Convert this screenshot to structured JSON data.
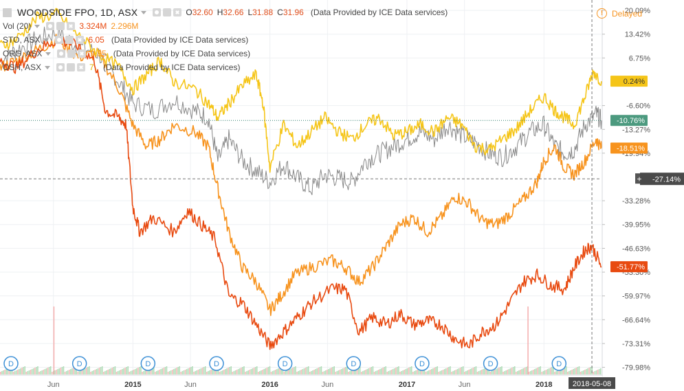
{
  "header": {
    "title": "WOODSIDE FPO, 1D, ASX",
    "ohlc": [
      {
        "k": "O",
        "v": "32.60"
      },
      {
        "k": "H",
        "v": "32.66"
      },
      {
        "k": "L",
        "v": "31.88"
      },
      {
        "k": "C",
        "v": "31.96"
      }
    ],
    "provided": "(Data Provided by ICE Data services)",
    "delayed": "Delayed"
  },
  "volume_legend": {
    "label": "Vol (20)",
    "v1": "3.324M",
    "v2": "2.296M"
  },
  "comparisons": [
    {
      "label": "STO, ASX",
      "value": "6.05",
      "color": "#e84a10",
      "provided": "(Data Provided by ICE Data services)"
    },
    {
      "label": "ORG, ASX",
      "value": "9.85",
      "color": "#f7931e",
      "provided": "(Data Provided by ICE Data services)"
    },
    {
      "label": "OSH, ASX",
      "value": "7.",
      "color": "#f5c518",
      "provided": "(Data Provided by ICE Data services)"
    }
  ],
  "colors": {
    "WPL": "#888888",
    "STO": "#e84a10",
    "ORG": "#f7931e",
    "OSH": "#f5c518",
    "volume_up": "#9fd5a6",
    "volume_down": "#f4a6a6"
  },
  "chart_data": {
    "type": "line",
    "y_axis_percent": true,
    "ylim": [
      -82,
      23
    ],
    "y_ticks": [
      "20.09%",
      "13.42%",
      "6.75%",
      "-6.60%",
      "-13.27%",
      "-19.94%",
      "-33.28%",
      "-39.95%",
      "-46.63%",
      "-53.30%",
      "-59.97%",
      "-66.64%",
      "-73.31%",
      "-79.98%"
    ],
    "y_tick_values": [
      20.09,
      13.42,
      6.75,
      -6.6,
      -13.27,
      -19.94,
      -33.28,
      -39.95,
      -46.63,
      -53.3,
      -59.97,
      -66.64,
      -73.31,
      -79.98
    ],
    "x_ticks": [
      {
        "label": "Jun",
        "t": 2014.42
      },
      {
        "label": "2015",
        "t": 2015.0
      },
      {
        "label": "Jun",
        "t": 2015.42
      },
      {
        "label": "2016",
        "t": 2016.0
      },
      {
        "label": "Jun",
        "t": 2016.42
      },
      {
        "label": "2017",
        "t": 2017.0
      },
      {
        "label": "Jun",
        "t": 2017.42
      },
      {
        "label": "2018",
        "t": 2018.0
      }
    ],
    "x_range": [
      2014.03,
      2018.42
    ],
    "crosshair": {
      "x_label": "2018-05-08",
      "t": 2018.35,
      "y_label": "-27.14%",
      "y": -27.14
    },
    "last_value_labels": [
      {
        "series": "OSH",
        "label": "0.24%",
        "y": 0.24
      },
      {
        "series": "WPL",
        "label": "-10.76%",
        "y": -10.76
      },
      {
        "series": "ORG",
        "label": "-18.51%",
        "y": -18.51
      },
      {
        "series": "STO",
        "label": "-51.77%",
        "y": -51.77
      }
    ],
    "series": [
      {
        "key": "WPL",
        "name": "WOODSIDE FPO",
        "points": [
          [
            2014.03,
            6
          ],
          [
            2014.15,
            9
          ],
          [
            2014.3,
            12
          ],
          [
            2014.45,
            14
          ],
          [
            2014.6,
            10
          ],
          [
            2014.75,
            8
          ],
          [
            2014.9,
            0
          ],
          [
            2015.0,
            -6
          ],
          [
            2015.15,
            -8
          ],
          [
            2015.3,
            -5
          ],
          [
            2015.45,
            -8
          ],
          [
            2015.55,
            -10
          ],
          [
            2015.62,
            -22
          ],
          [
            2015.7,
            -16
          ],
          [
            2015.8,
            -22
          ],
          [
            2015.9,
            -25
          ],
          [
            2016.0,
            -28
          ],
          [
            2016.1,
            -23
          ],
          [
            2016.2,
            -27
          ],
          [
            2016.3,
            -30
          ],
          [
            2016.4,
            -26
          ],
          [
            2016.5,
            -27
          ],
          [
            2016.6,
            -28
          ],
          [
            2016.7,
            -22
          ],
          [
            2016.8,
            -20
          ],
          [
            2016.9,
            -18
          ],
          [
            2017.0,
            -16
          ],
          [
            2017.1,
            -14
          ],
          [
            2017.2,
            -16
          ],
          [
            2017.3,
            -12
          ],
          [
            2017.4,
            -15
          ],
          [
            2017.5,
            -17
          ],
          [
            2017.6,
            -20
          ],
          [
            2017.7,
            -21
          ],
          [
            2017.8,
            -18
          ],
          [
            2017.9,
            -14
          ],
          [
            2018.0,
            -12
          ],
          [
            2018.08,
            -18
          ],
          [
            2018.15,
            -20
          ],
          [
            2018.22,
            -19
          ],
          [
            2018.3,
            -12
          ],
          [
            2018.38,
            -9
          ],
          [
            2018.42,
            -10.76
          ]
        ]
      },
      {
        "key": "STO",
        "name": "STO, ASX",
        "points": [
          [
            2014.03,
            6
          ],
          [
            2014.15,
            4
          ],
          [
            2014.3,
            9
          ],
          [
            2014.45,
            12
          ],
          [
            2014.6,
            10
          ],
          [
            2014.72,
            6
          ],
          [
            2014.8,
            -8
          ],
          [
            2014.9,
            -10
          ],
          [
            2014.95,
            -12
          ],
          [
            2015.0,
            -35
          ],
          [
            2015.05,
            -42
          ],
          [
            2015.15,
            -38
          ],
          [
            2015.3,
            -42
          ],
          [
            2015.4,
            -36
          ],
          [
            2015.5,
            -40
          ],
          [
            2015.6,
            -44
          ],
          [
            2015.7,
            -60
          ],
          [
            2015.8,
            -62
          ],
          [
            2015.9,
            -68
          ],
          [
            2016.0,
            -74
          ],
          [
            2016.1,
            -70
          ],
          [
            2016.2,
            -66
          ],
          [
            2016.3,
            -62
          ],
          [
            2016.45,
            -58
          ],
          [
            2016.55,
            -58
          ],
          [
            2016.65,
            -70
          ],
          [
            2016.75,
            -66
          ],
          [
            2016.85,
            -68
          ],
          [
            2016.95,
            -65
          ],
          [
            2017.05,
            -68
          ],
          [
            2017.15,
            -67
          ],
          [
            2017.25,
            -68
          ],
          [
            2017.35,
            -72
          ],
          [
            2017.45,
            -74
          ],
          [
            2017.55,
            -70
          ],
          [
            2017.65,
            -68
          ],
          [
            2017.75,
            -62
          ],
          [
            2017.85,
            -56
          ],
          [
            2017.95,
            -54
          ],
          [
            2018.05,
            -57
          ],
          [
            2018.15,
            -58
          ],
          [
            2018.22,
            -52
          ],
          [
            2018.3,
            -47
          ],
          [
            2018.35,
            -46
          ],
          [
            2018.42,
            -51.77
          ]
        ]
      },
      {
        "key": "ORG",
        "name": "ORG, ASX",
        "points": [
          [
            2014.03,
            4
          ],
          [
            2014.15,
            6
          ],
          [
            2014.3,
            9
          ],
          [
            2014.45,
            12
          ],
          [
            2014.6,
            7
          ],
          [
            2014.75,
            8
          ],
          [
            2014.9,
            -2
          ],
          [
            2015.0,
            -12
          ],
          [
            2015.1,
            -18
          ],
          [
            2015.2,
            -16
          ],
          [
            2015.3,
            -12
          ],
          [
            2015.45,
            -14
          ],
          [
            2015.55,
            -18
          ],
          [
            2015.62,
            -30
          ],
          [
            2015.7,
            -42
          ],
          [
            2015.8,
            -52
          ],
          [
            2015.9,
            -56
          ],
          [
            2016.0,
            -64
          ],
          [
            2016.08,
            -60
          ],
          [
            2016.18,
            -54
          ],
          [
            2016.3,
            -52
          ],
          [
            2016.45,
            -50
          ],
          [
            2016.55,
            -52
          ],
          [
            2016.65,
            -56
          ],
          [
            2016.75,
            -52
          ],
          [
            2016.85,
            -46
          ],
          [
            2016.95,
            -40
          ],
          [
            2017.05,
            -38
          ],
          [
            2017.15,
            -42
          ],
          [
            2017.25,
            -38
          ],
          [
            2017.35,
            -32
          ],
          [
            2017.45,
            -34
          ],
          [
            2017.55,
            -39
          ],
          [
            2017.65,
            -40
          ],
          [
            2017.75,
            -37
          ],
          [
            2017.85,
            -33
          ],
          [
            2017.95,
            -28
          ],
          [
            2018.0,
            -22
          ],
          [
            2018.08,
            -18
          ],
          [
            2018.15,
            -24
          ],
          [
            2018.22,
            -26
          ],
          [
            2018.3,
            -22
          ],
          [
            2018.38,
            -16
          ],
          [
            2018.42,
            -18.51
          ]
        ]
      },
      {
        "key": "OSH",
        "name": "OSH, ASX",
        "points": [
          [
            2014.03,
            10
          ],
          [
            2014.15,
            12
          ],
          [
            2014.3,
            18
          ],
          [
            2014.45,
            19
          ],
          [
            2014.6,
            13
          ],
          [
            2014.75,
            8
          ],
          [
            2014.9,
            4
          ],
          [
            2015.0,
            -2
          ],
          [
            2015.1,
            2
          ],
          [
            2015.2,
            6
          ],
          [
            2015.3,
            0
          ],
          [
            2015.45,
            -2
          ],
          [
            2015.55,
            -6
          ],
          [
            2015.62,
            -10
          ],
          [
            2015.7,
            -6
          ],
          [
            2015.8,
            -1
          ],
          [
            2015.9,
            2
          ],
          [
            2015.95,
            -6
          ],
          [
            2016.0,
            -24
          ],
          [
            2016.1,
            -12
          ],
          [
            2016.2,
            -18
          ],
          [
            2016.3,
            -14
          ],
          [
            2016.4,
            -10
          ],
          [
            2016.5,
            -14
          ],
          [
            2016.6,
            -16
          ],
          [
            2016.7,
            -12
          ],
          [
            2016.8,
            -10
          ],
          [
            2016.9,
            -15
          ],
          [
            2017.0,
            -14
          ],
          [
            2017.1,
            -12
          ],
          [
            2017.2,
            -14
          ],
          [
            2017.3,
            -10
          ],
          [
            2017.4,
            -12
          ],
          [
            2017.5,
            -18
          ],
          [
            2017.6,
            -19
          ],
          [
            2017.7,
            -16
          ],
          [
            2017.8,
            -13
          ],
          [
            2017.9,
            -8
          ],
          [
            2018.0,
            -4
          ],
          [
            2018.08,
            -8
          ],
          [
            2018.15,
            -10
          ],
          [
            2018.22,
            -12
          ],
          [
            2018.3,
            -4
          ],
          [
            2018.36,
            3
          ],
          [
            2018.42,
            0.24
          ]
        ]
      }
    ],
    "events": [
      {
        "label": "D",
        "t": 2014.03
      },
      {
        "label": "D",
        "t": 2014.53
      },
      {
        "label": "D",
        "t": 2015.03
      },
      {
        "label": "D",
        "t": 2015.53
      },
      {
        "label": "D",
        "t": 2016.03
      },
      {
        "label": "D",
        "t": 2016.53
      },
      {
        "label": "D",
        "t": 2017.03
      },
      {
        "label": "D",
        "t": 2017.53
      },
      {
        "label": "D",
        "t": 2018.03
      }
    ],
    "volume_spikes": [
      {
        "t": 2014.42,
        "rel": 0.9
      },
      {
        "t": 2017.88,
        "rel": 0.9
      }
    ]
  }
}
